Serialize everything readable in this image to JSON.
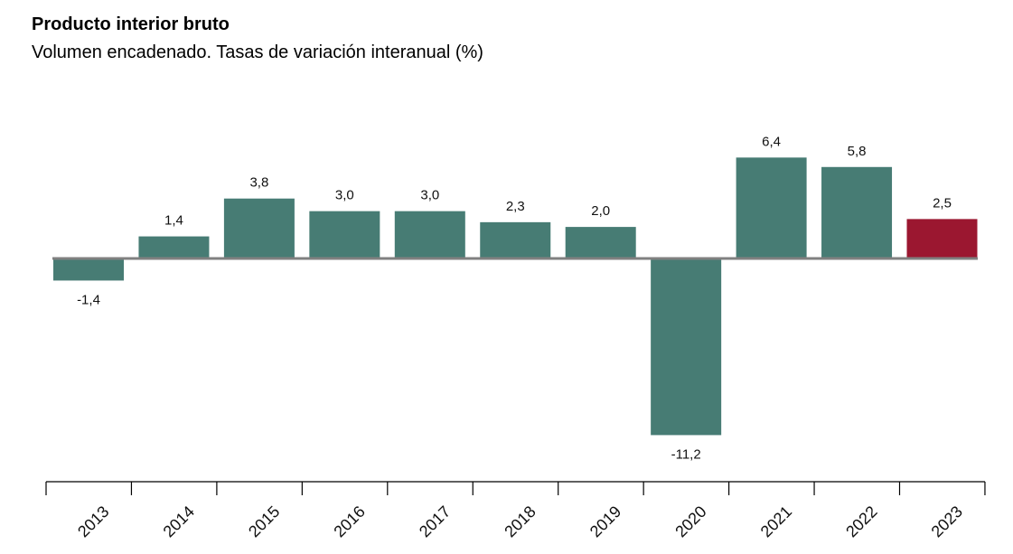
{
  "chart_data": {
    "type": "bar",
    "title": "Producto interior bruto",
    "subtitle": "Volumen encadenado. Tasas de variación interanual (%)",
    "categories": [
      "2013",
      "2014",
      "2015",
      "2016",
      "2017",
      "2018",
      "2019",
      "2020",
      "2021",
      "2022",
      "2023"
    ],
    "values": [
      -1.4,
      1.4,
      3.8,
      3.0,
      3.0,
      2.3,
      2.0,
      -11.2,
      6.4,
      5.8,
      2.5
    ],
    "value_labels": [
      "-1,4",
      "1,4",
      "3,8",
      "3,0",
      "3,0",
      "2,3",
      "2,0",
      "-11,2",
      "6,4",
      "5,8",
      "2,5"
    ],
    "xlabel": "",
    "ylabel": "",
    "colors": {
      "default": "#477c74",
      "highlight": "#9b1730",
      "highlight_category": "2023",
      "zero_line": "#808080"
    },
    "grid": false,
    "legend": "none"
  }
}
